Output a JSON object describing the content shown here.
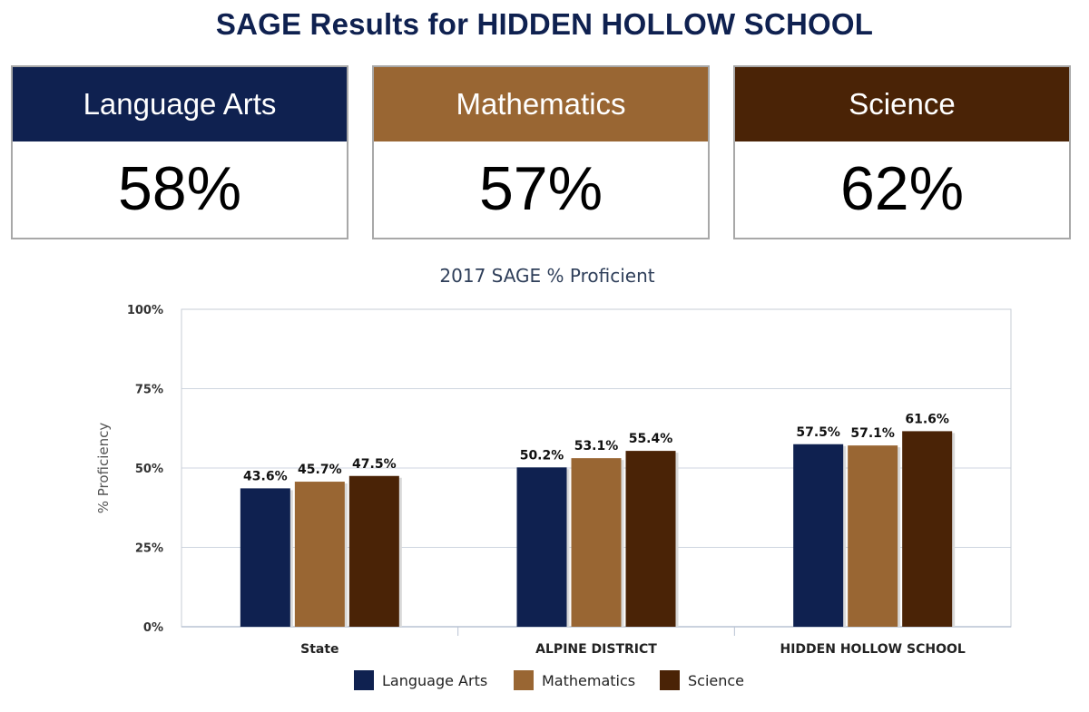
{
  "header": {
    "title": "SAGE Results for HIDDEN HOLLOW SCHOOL"
  },
  "cards": [
    {
      "label": "Language Arts",
      "value": "58%",
      "color": "#0f2150"
    },
    {
      "label": "Mathematics",
      "value": "57%",
      "color": "#996633"
    },
    {
      "label": "Science",
      "value": "62%",
      "color": "#4a2306"
    }
  ],
  "chart_data": {
    "type": "bar",
    "title": "2017 SAGE % Proficient",
    "ylabel": "% Proficiency",
    "xlabel": "",
    "categories": [
      "State",
      "ALPINE DISTRICT",
      "HIDDEN HOLLOW SCHOOL"
    ],
    "series": [
      {
        "name": "Language Arts",
        "values": [
          43.6,
          50.2,
          57.5
        ],
        "color": "#0f2150"
      },
      {
        "name": "Mathematics",
        "values": [
          45.7,
          53.1,
          57.1
        ],
        "color": "#996633"
      },
      {
        "name": "Science",
        "values": [
          47.5,
          55.4,
          61.6
        ],
        "color": "#4a2306"
      }
    ],
    "ylim": [
      0,
      100
    ],
    "yticks": [
      0,
      25,
      50,
      75,
      100
    ],
    "ytick_labels": [
      "0%",
      "25%",
      "50%",
      "75%",
      "100%"
    ],
    "data_labels": [
      [
        "43.6%",
        "50.2%",
        "57.5%"
      ],
      [
        "45.7%",
        "53.1%",
        "57.1%"
      ],
      [
        "47.5%",
        "55.4%",
        "61.6%"
      ]
    ],
    "grid": true,
    "legend": "bottom-center"
  }
}
